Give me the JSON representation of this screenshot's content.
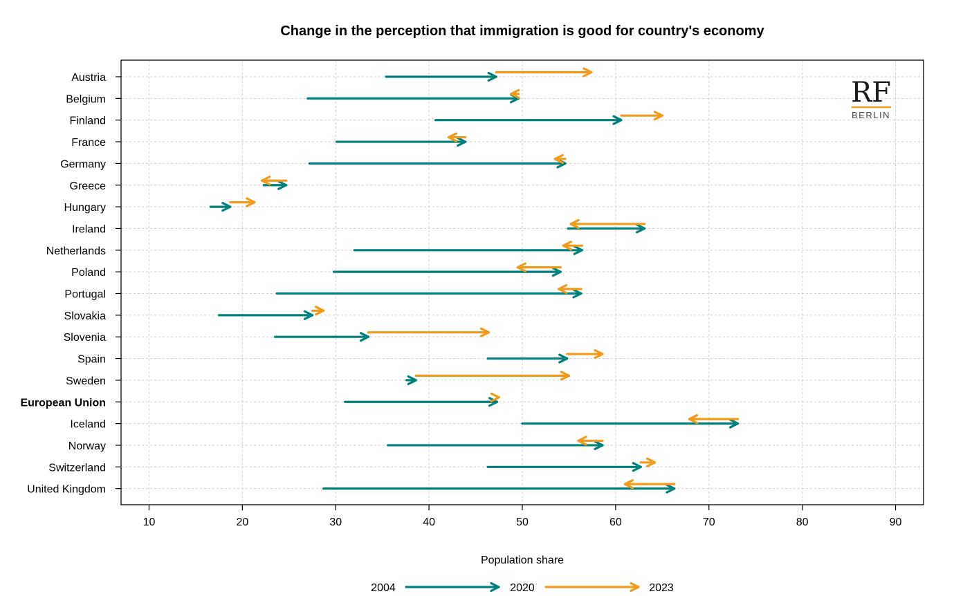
{
  "logo": {
    "main": "RF",
    "sub": "BERLIN"
  },
  "colors": {
    "teal": "#00807a",
    "orange": "#f29a1a",
    "grid": "#cfcfcf"
  },
  "chart_data": {
    "type": "arrow-dot",
    "title": "Change in the perception that immigration is good for country's economy",
    "xlabel": "Population share",
    "ylabel": "",
    "xlim": [
      7,
      93
    ],
    "xticks": [
      10,
      20,
      30,
      40,
      50,
      60,
      70,
      80,
      90
    ],
    "grid": true,
    "legend": {
      "placement": "bottom",
      "labels": [
        "2004",
        "2020",
        "2023"
      ]
    },
    "series": [
      {
        "name": "2004",
        "key": "v2004"
      },
      {
        "name": "2020",
        "key": "v2020"
      },
      {
        "name": "2023",
        "key": "v2023"
      }
    ],
    "rows": [
      {
        "country": "Austria",
        "v2004": 35.4,
        "v2020": 47.2,
        "v2023": 57.4,
        "bold": false
      },
      {
        "country": "Belgium",
        "v2004": 27.0,
        "v2020": 49.6,
        "v2023": 48.8,
        "bold": false
      },
      {
        "country": "Finland",
        "v2004": 40.7,
        "v2020": 60.6,
        "v2023": 65.0,
        "bold": false
      },
      {
        "country": "France",
        "v2004": 30.1,
        "v2020": 43.9,
        "v2023": 42.1,
        "bold": false
      },
      {
        "country": "Germany",
        "v2004": 27.2,
        "v2020": 54.6,
        "v2023": 53.5,
        "bold": false
      },
      {
        "country": "Greece",
        "v2004": 22.3,
        "v2020": 24.7,
        "v2023": 22.1,
        "bold": false
      },
      {
        "country": "Hungary",
        "v2004": 16.6,
        "v2020": 18.7,
        "v2023": 21.3,
        "bold": false
      },
      {
        "country": "Ireland",
        "v2004": 54.9,
        "v2020": 63.1,
        "v2023": 55.2,
        "bold": false
      },
      {
        "country": "Netherlands",
        "v2004": 32.0,
        "v2020": 56.4,
        "v2023": 54.4,
        "bold": false
      },
      {
        "country": "Poland",
        "v2004": 29.8,
        "v2020": 54.1,
        "v2023": 49.5,
        "bold": false
      },
      {
        "country": "Portugal",
        "v2004": 23.7,
        "v2020": 56.3,
        "v2023": 53.9,
        "bold": false
      },
      {
        "country": "Slovakia",
        "v2004": 17.5,
        "v2020": 27.5,
        "v2023": 28.7,
        "bold": false
      },
      {
        "country": "Slovenia",
        "v2004": 23.5,
        "v2020": 33.5,
        "v2023": 46.4,
        "bold": false
      },
      {
        "country": "Spain",
        "v2004": 46.3,
        "v2020": 54.8,
        "v2023": 58.6,
        "bold": false
      },
      {
        "country": "Sweden",
        "v2004": 37.6,
        "v2020": 38.6,
        "v2023": 55.0,
        "bold": false
      },
      {
        "country": "European Union",
        "v2004": 31.0,
        "v2020": 47.3,
        "v2023": 47.5,
        "bold": true
      },
      {
        "country": "Iceland",
        "v2004": 50.0,
        "v2020": 73.1,
        "v2023": 67.9,
        "bold": false
      },
      {
        "country": "Norway",
        "v2004": 35.6,
        "v2020": 58.6,
        "v2023": 56.0,
        "bold": false
      },
      {
        "country": "Switzerland",
        "v2004": 46.3,
        "v2020": 62.7,
        "v2023": 64.2,
        "bold": false
      },
      {
        "country": "United Kingdom",
        "v2004": 28.7,
        "v2020": 66.3,
        "v2023": 61.0,
        "bold": false
      }
    ]
  }
}
